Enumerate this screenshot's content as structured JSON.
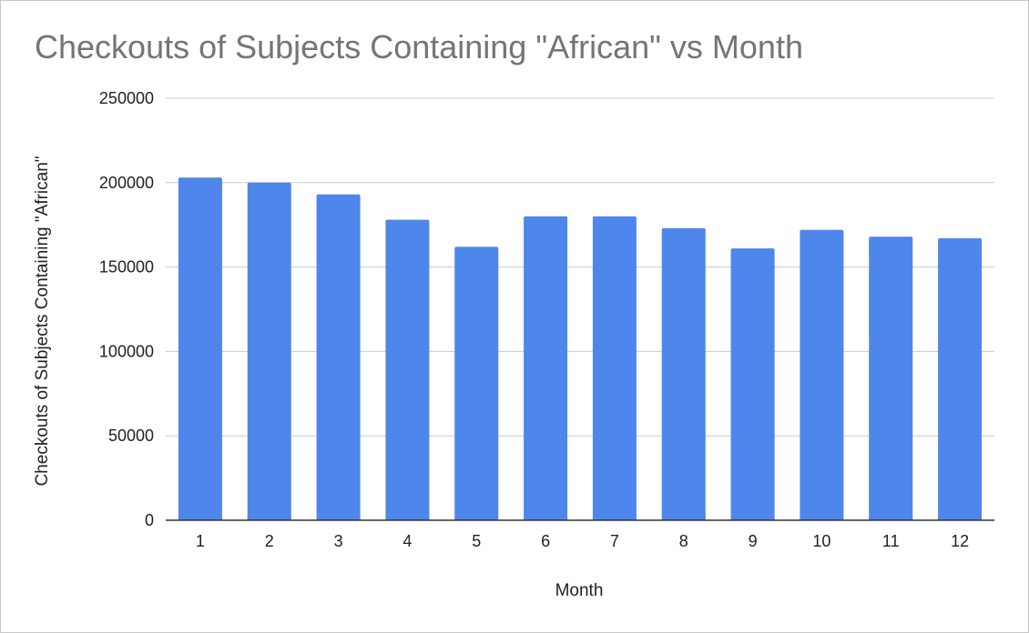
{
  "chart_data": {
    "type": "bar",
    "title": "Checkouts of Subjects Containing \"African\" vs Month",
    "xlabel": "Month",
    "ylabel": "Checkouts of Subjects Containing \"African\"",
    "categories": [
      "1",
      "2",
      "3",
      "4",
      "5",
      "6",
      "7",
      "8",
      "9",
      "10",
      "11",
      "12"
    ],
    "values": [
      203000,
      200000,
      193000,
      178000,
      162000,
      180000,
      180000,
      173000,
      161000,
      172000,
      168000,
      167000
    ],
    "ylim": [
      0,
      250000
    ],
    "yticks": [
      "0",
      "50000",
      "100000",
      "150000",
      "200000",
      "250000"
    ],
    "grid": true,
    "legend": "none",
    "bar_color": "#4f86ec",
    "grid_color": "#cccccc",
    "axis_color": "#333333"
  }
}
